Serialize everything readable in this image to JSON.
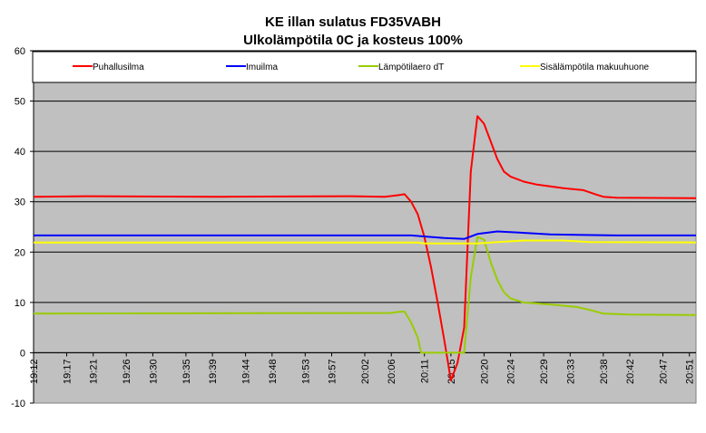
{
  "chart_data": {
    "type": "line",
    "title": "KE illan sulatus FD35VABH",
    "subtitle": "Ulkolämpötila 0C ja kosteus 100%",
    "xlabel": "",
    "ylabel": "",
    "ylim": [
      -10,
      60
    ],
    "yticks": [
      -10,
      0,
      10,
      20,
      30,
      40,
      50,
      60
    ],
    "xlim": [
      "19:12",
      "20:52"
    ],
    "xticks": [
      "19:12",
      "19:17",
      "19:21",
      "19:26",
      "19:30",
      "19:35",
      "19:39",
      "19:44",
      "19:48",
      "19:53",
      "19:57",
      "20:02",
      "20:06",
      "20:11",
      "20:15",
      "20:20",
      "20:24",
      "20:29",
      "20:33",
      "20:38",
      "20:42",
      "20:47",
      "20:51"
    ],
    "grid": true,
    "legend_position": "top",
    "plot_background": "#c0c0c0",
    "series": [
      {
        "name": "Puhallusilma",
        "color": "#ff0000",
        "points": [
          [
            "19:12",
            31.0
          ],
          [
            "19:20",
            31.1
          ],
          [
            "19:40",
            31.0
          ],
          [
            "20:00",
            31.1
          ],
          [
            "20:05",
            31.0
          ],
          [
            "20:07",
            31.3
          ],
          [
            "20:08",
            31.5
          ],
          [
            "20:09",
            30.0
          ],
          [
            "20:10",
            27.5
          ],
          [
            "20:11",
            23.0
          ],
          [
            "20:12",
            17.0
          ],
          [
            "20:13",
            10.0
          ],
          [
            "20:14",
            2.5
          ],
          [
            "20:15",
            -5.5
          ],
          [
            "20:16",
            -2.0
          ],
          [
            "20:17",
            5.0
          ],
          [
            "20:18",
            36.0
          ],
          [
            "20:19",
            47.0
          ],
          [
            "20:20",
            45.5
          ],
          [
            "20:21",
            42.0
          ],
          [
            "20:22",
            38.5
          ],
          [
            "20:23",
            36.0
          ],
          [
            "20:24",
            35.0
          ],
          [
            "20:26",
            34.0
          ],
          [
            "20:28",
            33.4
          ],
          [
            "20:32",
            32.7
          ],
          [
            "20:35",
            32.3
          ],
          [
            "20:37",
            31.4
          ],
          [
            "20:38",
            31.0
          ],
          [
            "20:40",
            30.8
          ],
          [
            "20:52",
            30.7
          ]
        ]
      },
      {
        "name": "Imuilma",
        "color": "#0000ff",
        "points": [
          [
            "19:12",
            23.3
          ],
          [
            "20:09",
            23.3
          ],
          [
            "20:12",
            23.0
          ],
          [
            "20:14",
            22.8
          ],
          [
            "20:17",
            22.6
          ],
          [
            "20:19",
            23.6
          ],
          [
            "20:22",
            24.1
          ],
          [
            "20:25",
            23.9
          ],
          [
            "20:30",
            23.5
          ],
          [
            "20:40",
            23.3
          ],
          [
            "20:52",
            23.3
          ]
        ]
      },
      {
        "name": "Lämpötilaero dT",
        "color": "#99cc00",
        "points": [
          [
            "19:12",
            7.8
          ],
          [
            "20:06",
            7.9
          ],
          [
            "20:07",
            8.1
          ],
          [
            "20:08",
            8.2
          ],
          [
            "20:09",
            6.0
          ],
          [
            "20:10",
            3.0
          ],
          [
            "20:10.5",
            0.0
          ],
          [
            "20:17",
            0.0
          ],
          [
            "20:18",
            15.0
          ],
          [
            "20:19",
            23.0
          ],
          [
            "20:20",
            22.5
          ],
          [
            "20:21",
            18.0
          ],
          [
            "20:22",
            14.5
          ],
          [
            "20:23",
            12.0
          ],
          [
            "20:24",
            10.8
          ],
          [
            "20:26",
            10.0
          ],
          [
            "20:30",
            9.6
          ],
          [
            "20:34",
            9.1
          ],
          [
            "20:36",
            8.5
          ],
          [
            "20:38",
            7.8
          ],
          [
            "20:42",
            7.6
          ],
          [
            "20:52",
            7.5
          ]
        ]
      },
      {
        "name": "Sisälämpötila makuuhuone",
        "color": "#ffff00",
        "points": [
          [
            "19:12",
            21.9
          ],
          [
            "20:10",
            21.9
          ],
          [
            "20:11",
            21.7
          ],
          [
            "20:19",
            21.7
          ],
          [
            "20:22",
            22.0
          ],
          [
            "20:26",
            22.3
          ],
          [
            "20:32",
            22.3
          ],
          [
            "20:36",
            22.0
          ],
          [
            "20:52",
            21.9
          ]
        ]
      }
    ]
  }
}
